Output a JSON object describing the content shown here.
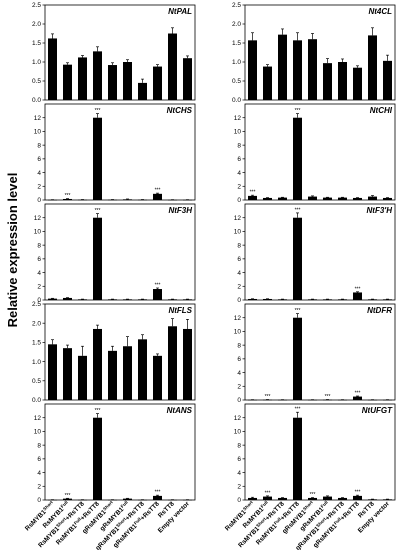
{
  "figure": {
    "y_axis_label": "Relative expression level"
  },
  "chart_data": [
    {
      "type": "bar",
      "title": "NtPAL",
      "categories": [
        "RsMYB1Short",
        "RsMYB1Full",
        "RsMYB1Short+RsTT8",
        "RsMYB1Full+RsTT8",
        "gRsMYB1Short",
        "gRsMYB1Full",
        "gRsMYB1Short+RsTT8",
        "gRsMYB1Full+RsTT8",
        "RsTT8",
        "Empty vector"
      ],
      "values": [
        1.62,
        0.93,
        1.12,
        1.28,
        0.92,
        1.0,
        0.45,
        0.88,
        1.75,
        1.1
      ],
      "errors": [
        0.12,
        0.05,
        0.05,
        0.12,
        0.06,
        0.06,
        0.1,
        0.05,
        0.15,
        0.06
      ],
      "significance": [
        "",
        "",
        "",
        "",
        "",
        "",
        "",
        "",
        "",
        ""
      ],
      "ylim": [
        0,
        2.5
      ],
      "yticks": [
        0,
        0.5,
        1.0,
        1.5,
        2.0,
        2.5
      ],
      "ytick_labels": [
        "0.0",
        "0.5",
        "1.0",
        "1.5",
        "2.0",
        "2.5"
      ]
    },
    {
      "type": "bar",
      "title": "Nt4CL",
      "categories": [
        "RsMYB1Short",
        "RsMYB1Full",
        "RsMYB1Short+RsTT8",
        "RsMYB1Full+RsTT8",
        "gRsMYB1Short",
        "gRsMYB1Full",
        "gRsMYB1Short+RsTT8",
        "gRsMYB1Full+RsTT8",
        "RsTT8",
        "Empty vector"
      ],
      "values": [
        1.57,
        0.88,
        1.72,
        1.57,
        1.6,
        0.97,
        1.0,
        0.85,
        1.7,
        1.03
      ],
      "errors": [
        0.2,
        0.05,
        0.15,
        0.2,
        0.15,
        0.12,
        0.08,
        0.05,
        0.2,
        0.15
      ],
      "significance": [
        "",
        "",
        "",
        "",
        "",
        "",
        "",
        "",
        "",
        ""
      ],
      "ylim": [
        0,
        2.5
      ],
      "yticks": [
        0,
        0.5,
        1.0,
        1.5,
        2.0,
        2.5
      ],
      "ytick_labels": [
        "0.0",
        "0.5",
        "1.0",
        "1.5",
        "2.0",
        "2.5"
      ]
    },
    {
      "type": "bar",
      "title": "NtCHS",
      "categories": [
        "RsMYB1Short",
        "RsMYB1Full",
        "RsMYB1Short+RsTT8",
        "RsMYB1Full+RsTT8",
        "gRsMYB1Short",
        "gRsMYB1Full",
        "gRsMYB1Short+RsTT8",
        "gRsMYB1Full+RsTT8",
        "RsTT8",
        "Empty vector"
      ],
      "values": [
        0.03,
        0.15,
        0.05,
        12.0,
        0.05,
        0.1,
        0.05,
        0.9,
        0.03,
        0.03
      ],
      "errors": [
        0.02,
        0.05,
        0.02,
        0.6,
        0.02,
        0.05,
        0.02,
        0.1,
        0.02,
        0.02
      ],
      "significance": [
        "",
        "***",
        "",
        "***",
        "",
        "",
        "",
        "***",
        "",
        ""
      ],
      "ylim": [
        0,
        14
      ],
      "yticks": [
        0,
        2,
        4,
        6,
        8,
        10,
        12
      ],
      "ytick_labels": [
        "0",
        "2",
        "4",
        "6",
        "8",
        "10",
        "12"
      ]
    },
    {
      "type": "bar",
      "title": "NtCHI",
      "categories": [
        "RsMYB1Short",
        "RsMYB1Full",
        "RsMYB1Short+RsTT8",
        "RsMYB1Full+RsTT8",
        "gRsMYB1Short",
        "gRsMYB1Full",
        "gRsMYB1Short+RsTT8",
        "gRsMYB1Full+RsTT8",
        "RsTT8",
        "Empty vector"
      ],
      "values": [
        0.6,
        0.3,
        0.35,
        12.0,
        0.5,
        0.35,
        0.35,
        0.3,
        0.5,
        0.3
      ],
      "errors": [
        0.1,
        0.05,
        0.05,
        0.6,
        0.1,
        0.05,
        0.05,
        0.05,
        0.15,
        0.05
      ],
      "significance": [
        "***",
        "",
        "",
        "***",
        "",
        "",
        "",
        "",
        "",
        ""
      ],
      "ylim": [
        0,
        14
      ],
      "yticks": [
        0,
        2,
        4,
        6,
        8,
        10,
        12
      ],
      "ytick_labels": [
        "0",
        "2",
        "4",
        "6",
        "8",
        "10",
        "12"
      ]
    },
    {
      "type": "bar",
      "title": "NtF3H",
      "categories": [
        "RsMYB1Short",
        "RsMYB1Full",
        "RsMYB1Short+RsTT8",
        "RsMYB1Full+RsTT8",
        "gRsMYB1Short",
        "gRsMYB1Full",
        "gRsMYB1Short+RsTT8",
        "gRsMYB1Full+RsTT8",
        "RsTT8",
        "Empty vector"
      ],
      "values": [
        0.2,
        0.3,
        0.1,
        12.0,
        0.1,
        0.1,
        0.1,
        1.6,
        0.1,
        0.1
      ],
      "errors": [
        0.05,
        0.05,
        0.03,
        0.6,
        0.03,
        0.03,
        0.03,
        0.15,
        0.03,
        0.03
      ],
      "significance": [
        "",
        "",
        "",
        "***",
        "",
        "",
        "",
        "***",
        "",
        ""
      ],
      "ylim": [
        0,
        14
      ],
      "yticks": [
        0,
        2,
        4,
        6,
        8,
        10,
        12
      ],
      "ytick_labels": [
        "0",
        "2",
        "4",
        "6",
        "8",
        "10",
        "12"
      ]
    },
    {
      "type": "bar",
      "title": "NtF3'H",
      "categories": [
        "RsMYB1Short",
        "RsMYB1Full",
        "RsMYB1Short+RsTT8",
        "RsMYB1Full+RsTT8",
        "gRsMYB1Short",
        "gRsMYB1Full",
        "gRsMYB1Short+RsTT8",
        "gRsMYB1Full+RsTT8",
        "RsTT8",
        "Empty vector"
      ],
      "values": [
        0.15,
        0.15,
        0.1,
        12.0,
        0.1,
        0.1,
        0.1,
        1.1,
        0.1,
        0.1
      ],
      "errors": [
        0.03,
        0.03,
        0.03,
        0.7,
        0.03,
        0.03,
        0.03,
        0.1,
        0.03,
        0.03
      ],
      "significance": [
        "",
        "",
        "",
        "***",
        "",
        "",
        "",
        "***",
        "",
        ""
      ],
      "ylim": [
        0,
        14
      ],
      "yticks": [
        0,
        2,
        4,
        6,
        8,
        10,
        12
      ],
      "ytick_labels": [
        "0",
        "2",
        "4",
        "6",
        "8",
        "10",
        "12"
      ]
    },
    {
      "type": "bar",
      "title": "NtFLS",
      "categories": [
        "RsMYB1Short",
        "RsMYB1Full",
        "RsMYB1Short+RsTT8",
        "RsMYB1Full+RsTT8",
        "gRsMYB1Short",
        "gRsMYB1Full",
        "gRsMYB1Short+RsTT8",
        "gRsMYB1Full+RsTT8",
        "RsTT8",
        "Empty vector"
      ],
      "values": [
        1.45,
        1.35,
        1.15,
        1.85,
        1.28,
        1.4,
        1.58,
        1.15,
        1.92,
        1.85
      ],
      "errors": [
        0.12,
        0.08,
        0.25,
        0.1,
        0.12,
        0.25,
        0.12,
        0.05,
        0.2,
        0.25
      ],
      "significance": [
        "",
        "",
        "",
        "",
        "",
        "",
        "",
        "",
        "",
        ""
      ],
      "ylim": [
        0,
        2.5
      ],
      "yticks": [
        0,
        0.5,
        1.0,
        1.5,
        2.0,
        2.5
      ],
      "ytick_labels": [
        "0.0",
        "0.5",
        "1.0",
        "1.5",
        "2.0",
        "2.5"
      ]
    },
    {
      "type": "bar",
      "title": "NtDFR",
      "categories": [
        "RsMYB1Short",
        "RsMYB1Full",
        "RsMYB1Short+RsTT8",
        "RsMYB1Full+RsTT8",
        "gRsMYB1Short",
        "gRsMYB1Full",
        "gRsMYB1Short+RsTT8",
        "gRsMYB1Full+RsTT8",
        "RsTT8",
        "Empty vector"
      ],
      "values": [
        0.03,
        0.05,
        0.03,
        12.0,
        0.03,
        0.05,
        0.03,
        0.5,
        0.03,
        0.03
      ],
      "errors": [
        0.02,
        0.02,
        0.02,
        0.6,
        0.02,
        0.02,
        0.02,
        0.08,
        0.02,
        0.02
      ],
      "significance": [
        "",
        "***",
        "",
        "***",
        "",
        "***",
        "",
        "***",
        "",
        ""
      ],
      "ylim": [
        0,
        14
      ],
      "yticks": [
        0,
        2,
        4,
        6,
        8,
        10,
        12
      ],
      "ytick_labels": [
        "0",
        "2",
        "4",
        "6",
        "8",
        "10",
        "12"
      ]
    },
    {
      "type": "bar",
      "title": "NtANS",
      "categories": [
        "RsMYB1Short",
        "RsMYB1Full",
        "RsMYB1Short+RsTT8",
        "RsMYB1Full+RsTT8",
        "gRsMYB1Short",
        "gRsMYB1Full",
        "gRsMYB1Short+RsTT8",
        "gRsMYB1Full+RsTT8",
        "RsTT8",
        "Empty vector"
      ],
      "values": [
        0.03,
        0.2,
        0.03,
        12.0,
        0.03,
        0.2,
        0.03,
        0.6,
        0.03,
        0.03
      ],
      "errors": [
        0.02,
        0.05,
        0.02,
        0.6,
        0.02,
        0.05,
        0.02,
        0.1,
        0.02,
        0.02
      ],
      "significance": [
        "",
        "***",
        "",
        "***",
        "",
        "",
        "",
        "***",
        "",
        ""
      ],
      "ylim": [
        0,
        14
      ],
      "yticks": [
        0,
        2,
        4,
        6,
        8,
        10,
        12
      ],
      "ytick_labels": [
        "0",
        "2",
        "4",
        "6",
        "8",
        "10",
        "12"
      ]
    },
    {
      "type": "bar",
      "title": "NtUFGT",
      "categories": [
        "RsMYB1Short",
        "RsMYB1Full",
        "RsMYB1Short+RsTT8",
        "RsMYB1Full+RsTT8",
        "gRsMYB1Short",
        "gRsMYB1Full",
        "gRsMYB1Short+RsTT8",
        "gRsMYB1Full+RsTT8",
        "RsTT8",
        "Empty vector"
      ],
      "values": [
        0.3,
        0.5,
        0.3,
        12.0,
        0.3,
        0.5,
        0.3,
        0.6,
        0.1,
        0.1
      ],
      "errors": [
        0.1,
        0.1,
        0.05,
        0.8,
        0.05,
        0.1,
        0.05,
        0.1,
        0.03,
        0.03
      ],
      "significance": [
        "",
        "***",
        "",
        "***",
        "***",
        "",
        "",
        "***",
        "",
        ""
      ],
      "ylim": [
        0,
        14
      ],
      "yticks": [
        0,
        2,
        4,
        6,
        8,
        10,
        12
      ],
      "ytick_labels": [
        "0",
        "2",
        "4",
        "6",
        "8",
        "10",
        "12"
      ]
    }
  ],
  "x_axis": {
    "labels": [
      {
        "base": "RsMYB1",
        "sup": "Short",
        "suffix": ""
      },
      {
        "base": "RsMYB1",
        "sup": "Full",
        "suffix": ""
      },
      {
        "base": "RsMYB1",
        "sup": "Short",
        "suffix": "+RsTT8"
      },
      {
        "base": "RsMYB1",
        "sup": "Full",
        "suffix": "+RsTT8"
      },
      {
        "base": "gRsMYB1",
        "sup": "Short",
        "suffix": ""
      },
      {
        "base": "gRsMYB1",
        "sup": "Full",
        "suffix": ""
      },
      {
        "base": "gRsMYB1",
        "sup": "Short",
        "suffix": "+RsTT8"
      },
      {
        "base": "gRsMYB1",
        "sup": "Full",
        "suffix": "+RsTT8"
      },
      {
        "base": "RsTT8",
        "sup": "",
        "suffix": ""
      },
      {
        "base": "Empty vector",
        "sup": "",
        "suffix": ""
      }
    ]
  }
}
